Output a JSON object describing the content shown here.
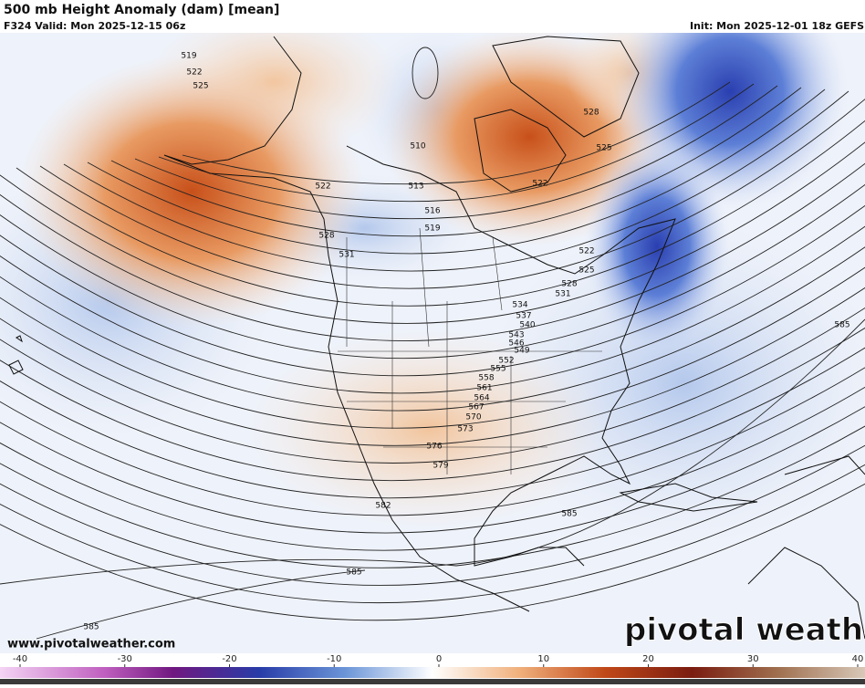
{
  "header": {
    "title": "500 mb Height Anomaly (dam) [mean]",
    "valid": "F324 Valid: Mon 2025-12-15 06z",
    "init": "Init: Mon 2025-12-01 18z GEFS"
  },
  "contour_labels": [
    519,
    522,
    525,
    510,
    513,
    516,
    519,
    522,
    528,
    531,
    528,
    525,
    522,
    522,
    525,
    528,
    531,
    534,
    537,
    540,
    543,
    546,
    549,
    552,
    555,
    558,
    561,
    564,
    567,
    570,
    573,
    576,
    579,
    582,
    585,
    585,
    585,
    585
  ],
  "footer": {
    "website": "www.pivotalweather.com",
    "logo": "pivotal weather"
  },
  "colorbar": {
    "range": [
      -40,
      40
    ],
    "ticks": [
      -40,
      -30,
      -20,
      -10,
      0,
      10,
      20,
      30,
      40
    ]
  }
}
